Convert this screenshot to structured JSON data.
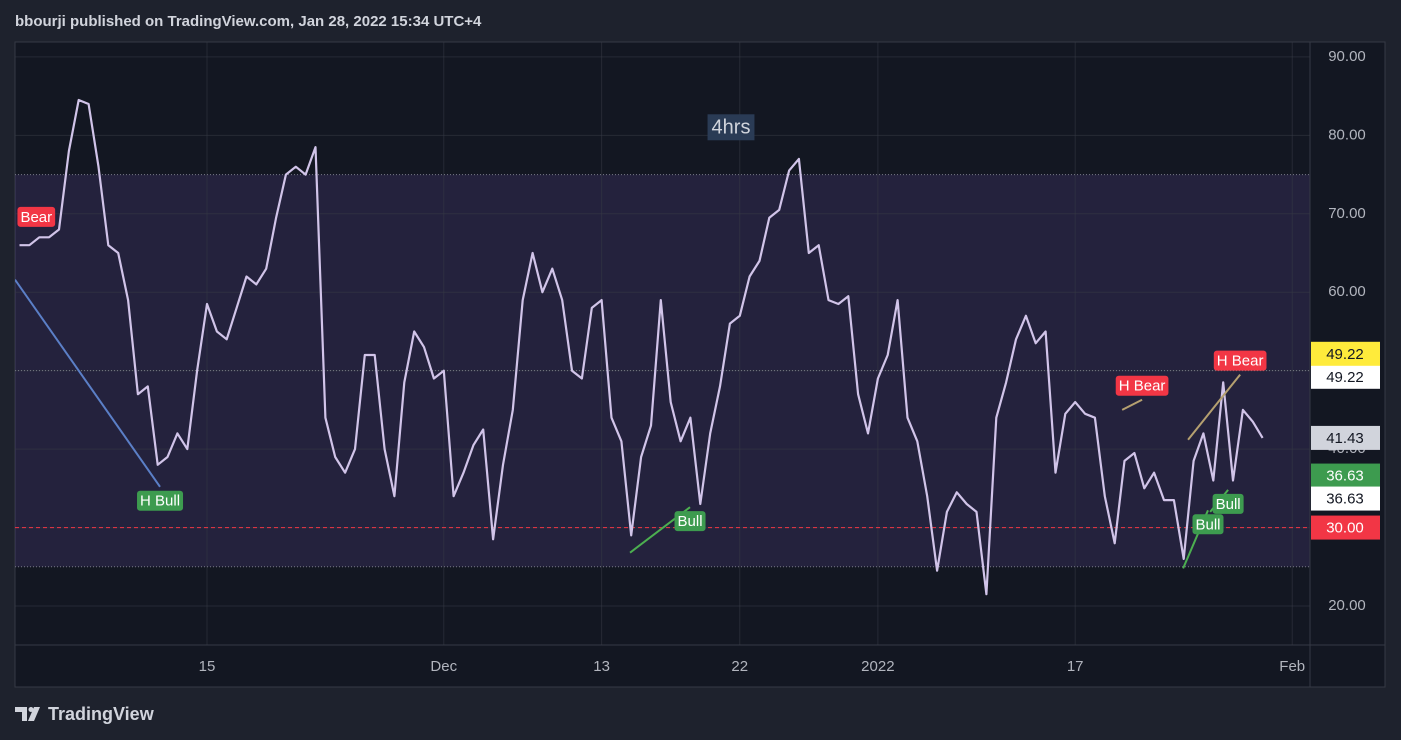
{
  "header": "bbourji published on TradingView.com, Jan 28, 2022 15:34 UTC+4",
  "footer": "TradingView",
  "chart_data": {
    "type": "line",
    "title": "4hrs",
    "x": [
      -9.5,
      -9,
      -8.5,
      -8,
      -7.5,
      -7,
      -6.5,
      -6,
      -5.5,
      -5,
      -4.5,
      -4,
      -3.5,
      -3,
      -2.5,
      -2,
      -1.5,
      -1,
      -0.5,
      0,
      0.5,
      1,
      1.5,
      2,
      2.5,
      3,
      3.5,
      4,
      4.5,
      5,
      5.5,
      6,
      6.5,
      7,
      7.5,
      8,
      8.5,
      9,
      9.5,
      10,
      10.5,
      11,
      11.5,
      12,
      12.5,
      13,
      13.5,
      14,
      14.5,
      15,
      15.5,
      16,
      16.5,
      17,
      17.5,
      18,
      18.5,
      19,
      19.5,
      20,
      20.5,
      21,
      21.5,
      22,
      22.5,
      23,
      23.5,
      24,
      24.5,
      25,
      25.5,
      26,
      26.5,
      27,
      27.5,
      28,
      28.5,
      29,
      29.5,
      30,
      30.5,
      31,
      31.5,
      32,
      32.5,
      33,
      33.5,
      34,
      34.5,
      35,
      35.5,
      36,
      36.5,
      37,
      37.5,
      38,
      38.5,
      39,
      39.5,
      40,
      40.5,
      41,
      41.5,
      42,
      42.5,
      43,
      43.5,
      44,
      44.5,
      45,
      45.5,
      46,
      46.5,
      47,
      47.5,
      48,
      48.5,
      49,
      49.5,
      50,
      50.5,
      51,
      51.5,
      52,
      52.5,
      53,
      53.5
    ],
    "series": [
      {
        "name": "RSI",
        "color": "#d1c4e9",
        "values": [
          66,
          66,
          67,
          67,
          68,
          78,
          84.5,
          84,
          76,
          66,
          65,
          59,
          47,
          48,
          38,
          39,
          42,
          40,
          50,
          58.5,
          55,
          54,
          58,
          62,
          61,
          63,
          69.5,
          75,
          76,
          75,
          78.5,
          44,
          39,
          37,
          40,
          52,
          52,
          40,
          34,
          48.5,
          55,
          53,
          49,
          50,
          34,
          37,
          40.5,
          42.5,
          28.5,
          38,
          45,
          59,
          65,
          60,
          63,
          59,
          50,
          49,
          58,
          59,
          44,
          41,
          29,
          39,
          43,
          59,
          46,
          41,
          44,
          33,
          42,
          48,
          56,
          57,
          62,
          64,
          69.5,
          70.5,
          75.5,
          77,
          65,
          66,
          59,
          58.5,
          59.5,
          47,
          42,
          49,
          52,
          59,
          44,
          41,
          34,
          24.5,
          32,
          34.5,
          33,
          32,
          21.5,
          44,
          48.5,
          54,
          57,
          53.5,
          55,
          37,
          44.5,
          46,
          44.5,
          44,
          34,
          28,
          38.5,
          39.5,
          35,
          37,
          33.5,
          33.5,
          26,
          38.5,
          42,
          36,
          48.5,
          36,
          45,
          43.5,
          41.43
        ]
      }
    ],
    "xlim": [
      -9.73,
      55.9
    ],
    "ylim": [
      15.03,
      91.9
    ],
    "xticks": [
      {
        "value": 0,
        "label": "15"
      },
      {
        "value": 12,
        "label": "Dec"
      },
      {
        "value": 20,
        "label": "13"
      },
      {
        "value": 27,
        "label": "22"
      },
      {
        "value": 34,
        "label": "2022"
      },
      {
        "value": 44,
        "label": "17"
      },
      {
        "value": 55,
        "label": "Feb"
      }
    ],
    "yticks": [
      {
        "value": 20,
        "label": "20.00"
      },
      {
        "value": 30,
        "label": "30.00"
      },
      {
        "value": 40,
        "label": "40.00"
      },
      {
        "value": 50,
        "label": "50.00"
      },
      {
        "value": 60,
        "label": "60.00"
      },
      {
        "value": 70,
        "label": "70.00"
      },
      {
        "value": 80,
        "label": "80.00"
      },
      {
        "value": 90,
        "label": "90.00"
      }
    ],
    "grid": true,
    "band": [
      25,
      75
    ],
    "midline": 50,
    "price_labels": [
      {
        "value": 30,
        "label": "30.00",
        "color": "#f23645",
        "text_color": "#ffffff",
        "line": true
      },
      {
        "value": 41.43,
        "label": "41.43",
        "color": "#d1d4dc",
        "text_color": "#131722"
      },
      {
        "value": 49.22,
        "label": "49.22",
        "color": "#ffffff",
        "text_color": "#131722"
      },
      {
        "value": 49.22,
        "label": "49.22",
        "color": "#ffeb3b",
        "text_color": "#131722"
      },
      {
        "value": 36.63,
        "label": "36.63",
        "color": "#3d9b4f",
        "text_color": "#ffffff"
      },
      {
        "value": 36.63,
        "label": "36.63",
        "color": "#ffffff",
        "text_color": "#131722"
      }
    ],
    "annotations": [
      {
        "label": "Bear",
        "color": "#f23645",
        "x": [
          -8.65
        ],
        "y": [
          69.6
        ]
      },
      {
        "label": "H Bull",
        "color": "#3d9b4f",
        "line_color": "#5b7fc7",
        "x": [
          -9.73,
          -2.38
        ],
        "y": [
          61.6,
          35.2
        ]
      },
      {
        "label": "Bull",
        "color": "#3d9b4f",
        "line_color": "#4caf50",
        "x": [
          21.44,
          24.48
        ],
        "y": [
          26.8,
          32.6
        ]
      },
      {
        "label": "H Bear",
        "color": "#f23645",
        "line_color": "#b5a070",
        "x": [
          46.38,
          47.39
        ],
        "y": [
          45,
          46.3
        ]
      },
      {
        "label": "Bull",
        "color": "#3d9b4f",
        "line_color": "#4caf50",
        "x": [
          49.47,
          50.73
        ],
        "y": [
          24.8,
          32.2
        ]
      },
      {
        "label": "Bull",
        "color": "#3d9b4f",
        "line_color": "#4caf50",
        "x": [
          50.84,
          51.75
        ],
        "y": [
          32,
          34.8
        ]
      },
      {
        "label": "H Bear",
        "color": "#f23645",
        "line_color": "#b5a070",
        "x": [
          49.72,
          52.36
        ],
        "y": [
          41.2,
          49.5
        ]
      }
    ]
  }
}
